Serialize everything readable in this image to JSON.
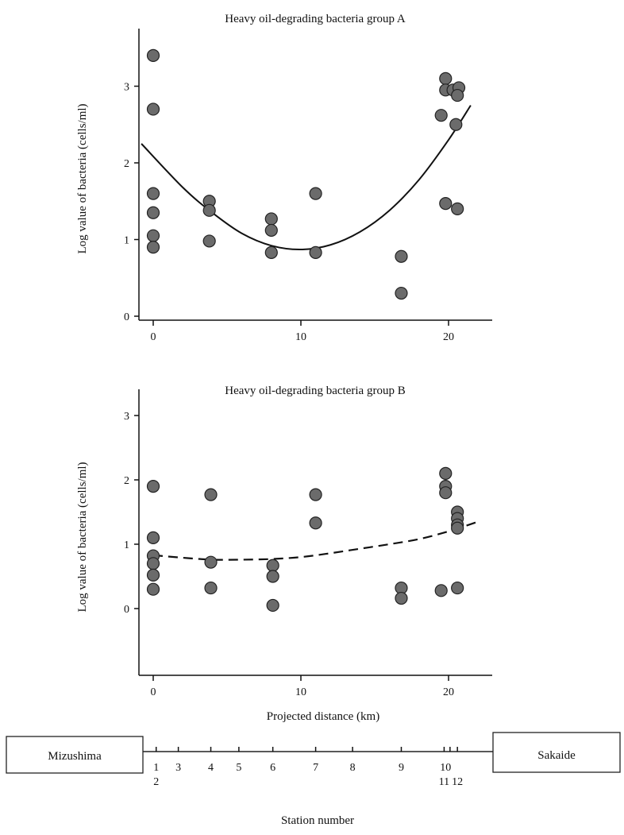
{
  "chart_data": [
    {
      "type": "scatter",
      "title": "Heavy oil-degrading bacteria group A",
      "ylabel": "Log value of bacteria (cells/ml)",
      "xlabel": "",
      "xlim": [
        -1,
        23
      ],
      "ylim": [
        0,
        3.6
      ],
      "xticks": [
        "0",
        "10",
        "20"
      ],
      "yticks": [
        "0",
        "1",
        "2",
        "3"
      ],
      "grid": false,
      "points": [
        {
          "x": 0,
          "y": 3.4
        },
        {
          "x": 0,
          "y": 2.7
        },
        {
          "x": 0,
          "y": 1.6
        },
        {
          "x": 0,
          "y": 1.35
        },
        {
          "x": 0,
          "y": 1.05
        },
        {
          "x": 0,
          "y": 0.9
        },
        {
          "x": 3.8,
          "y": 1.5
        },
        {
          "x": 3.8,
          "y": 1.38
        },
        {
          "x": 3.8,
          "y": 0.98
        },
        {
          "x": 8,
          "y": 1.27
        },
        {
          "x": 8,
          "y": 1.12
        },
        {
          "x": 8,
          "y": 0.83
        },
        {
          "x": 11,
          "y": 1.6
        },
        {
          "x": 11,
          "y": 0.83
        },
        {
          "x": 16.8,
          "y": 0.78
        },
        {
          "x": 16.8,
          "y": 0.3
        },
        {
          "x": 19.5,
          "y": 2.62
        },
        {
          "x": 19.8,
          "y": 3.1
        },
        {
          "x": 19.8,
          "y": 2.95
        },
        {
          "x": 20.3,
          "y": 2.95
        },
        {
          "x": 20.7,
          "y": 2.98
        },
        {
          "x": 20.6,
          "y": 2.88
        },
        {
          "x": 20.5,
          "y": 2.5
        },
        {
          "x": 19.8,
          "y": 1.47
        },
        {
          "x": 20.6,
          "y": 1.4
        }
      ],
      "fit_curve": {
        "style": "solid",
        "x": [
          -0.8,
          2,
          4,
          6,
          8,
          10,
          12,
          14,
          16,
          18,
          20,
          21.5
        ],
        "y": [
          2.25,
          1.68,
          1.35,
          1.08,
          0.92,
          0.87,
          0.93,
          1.1,
          1.38,
          1.78,
          2.3,
          2.75
        ]
      }
    },
    {
      "type": "scatter",
      "title": "Heavy oil-degrading bacteria group B",
      "ylabel": "Log value of bacteria (cells/ml)",
      "xlabel": "Projected distance (km)",
      "xlim": [
        -1,
        23
      ],
      "ylim": [
        -0.85,
        3.2
      ],
      "xticks": [
        "0",
        "10",
        "20"
      ],
      "yticks": [
        "0",
        "1",
        "2",
        "3"
      ],
      "grid": false,
      "points": [
        {
          "x": 0,
          "y": 1.9
        },
        {
          "x": 0,
          "y": 1.1
        },
        {
          "x": 0,
          "y": 0.82
        },
        {
          "x": 0,
          "y": 0.7
        },
        {
          "x": 0,
          "y": 0.52
        },
        {
          "x": 0,
          "y": 0.3
        },
        {
          "x": 3.9,
          "y": 1.77
        },
        {
          "x": 3.9,
          "y": 0.72
        },
        {
          "x": 3.9,
          "y": 0.32
        },
        {
          "x": 8.1,
          "y": 0.67
        },
        {
          "x": 8.1,
          "y": 0.5
        },
        {
          "x": 8.1,
          "y": 0.05
        },
        {
          "x": 11,
          "y": 1.77
        },
        {
          "x": 11,
          "y": 1.33
        },
        {
          "x": 16.8,
          "y": 0.32
        },
        {
          "x": 16.8,
          "y": 0.16
        },
        {
          "x": 19.5,
          "y": 0.28
        },
        {
          "x": 19.8,
          "y": 2.1
        },
        {
          "x": 19.8,
          "y": 1.9
        },
        {
          "x": 19.8,
          "y": 1.8
        },
        {
          "x": 20.6,
          "y": 1.5
        },
        {
          "x": 20.6,
          "y": 1.4
        },
        {
          "x": 20.6,
          "y": 1.3
        },
        {
          "x": 20.6,
          "y": 1.25
        },
        {
          "x": 20.6,
          "y": 0.32
        }
      ],
      "fit_curve": {
        "style": "dashed",
        "x": [
          0,
          2,
          4,
          6,
          8,
          10,
          12,
          14,
          16,
          18,
          20,
          22
        ],
        "y": [
          0.83,
          0.79,
          0.76,
          0.76,
          0.77,
          0.8,
          0.86,
          0.93,
          1.0,
          1.08,
          1.2,
          1.35
        ]
      }
    }
  ],
  "station_map": {
    "left_box": "Mizushima",
    "right_box": "Sakaide",
    "xlabel": "Station number",
    "stations": [
      {
        "label": "1",
        "x": 0.2,
        "row": 1
      },
      {
        "label": "2",
        "x": 0.2,
        "row": 2
      },
      {
        "label": "3",
        "x": 1.7,
        "row": 1
      },
      {
        "label": "4",
        "x": 3.9,
        "row": 1
      },
      {
        "label": "5",
        "x": 5.8,
        "row": 1
      },
      {
        "label": "6",
        "x": 8.1,
        "row": 1
      },
      {
        "label": "7",
        "x": 11.0,
        "row": 1
      },
      {
        "label": "8",
        "x": 13.5,
        "row": 1
      },
      {
        "label": "9",
        "x": 16.8,
        "row": 1
      },
      {
        "label": "10",
        "x": 19.8,
        "row": 1
      },
      {
        "label": "11",
        "x": 19.7,
        "row": 2
      },
      {
        "label": "12",
        "x": 20.6,
        "row": 2
      }
    ],
    "tick_x": [
      0.2,
      1.7,
      3.9,
      5.8,
      8.1,
      11.0,
      13.5,
      16.8,
      19.7,
      20.1,
      20.6
    ]
  }
}
